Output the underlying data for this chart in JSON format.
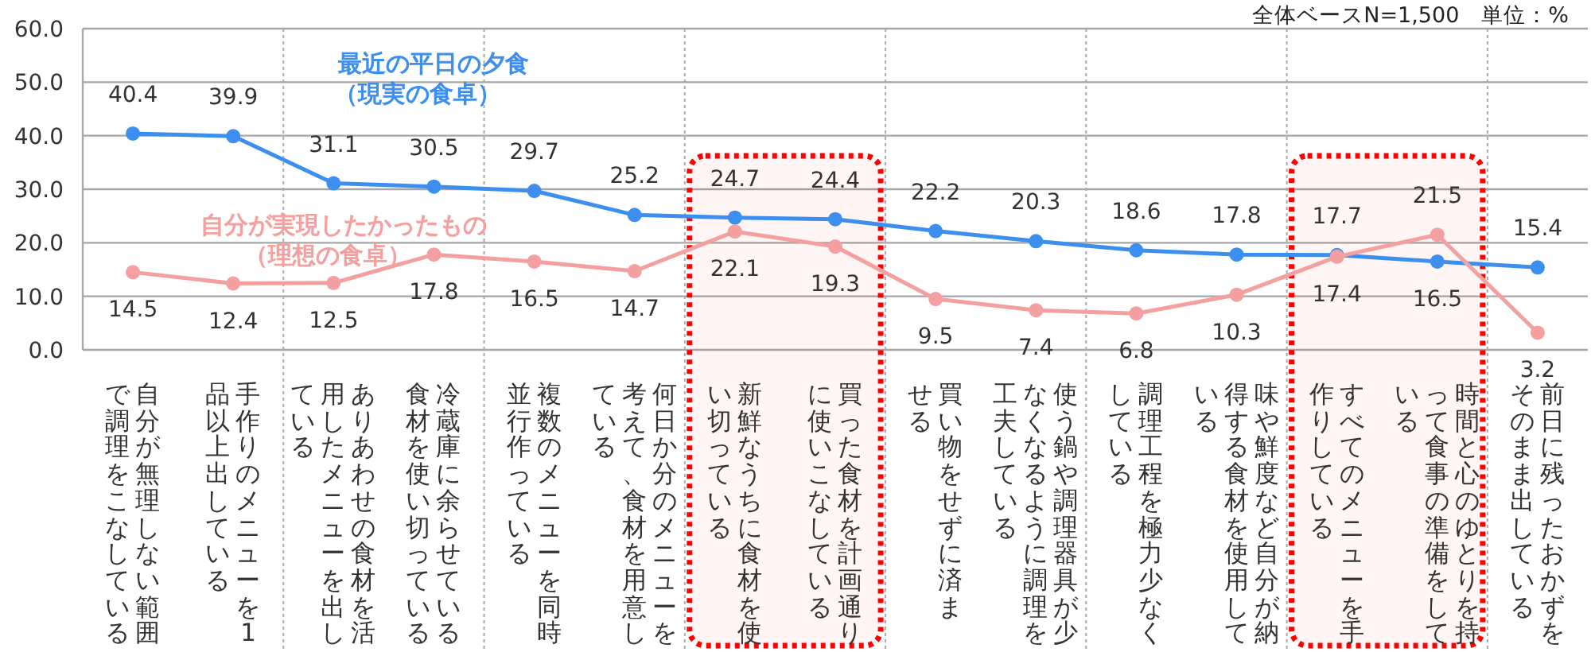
{
  "chart_data": {
    "type": "line",
    "categories": [
      "自分が無理しない範囲で調理をこなしている",
      "手作りのメニューを1品以上出している",
      "ありあわせの食材を活用したメニューを出している",
      "冷蔵庫に余らせている食材を使い切っている",
      "複数のメニューを同時並行作っている",
      "何日か分のメニューを考えて、食材を用意している",
      "新鮮なうちに食材を使い切っている",
      "買った食材を計画通りに使いこなしている",
      "買い物をせずに済ませる",
      "使う鍋や調理器具が少なくなるように調理を工夫している",
      "調理工程を極力少なくしている",
      "味や鮮度など自分が納得する食材を使用している",
      "すべてのメニューを手作りしている",
      "時間と心のゆとりを持って食事の準備をしている",
      "前日に残ったおかずをそのまま出している"
    ],
    "series": [
      {
        "name": "最近の平日の夕食（現実の食卓）",
        "color": "#3d8fef",
        "values": [
          40.4,
          39.9,
          31.1,
          30.5,
          29.7,
          25.2,
          24.7,
          24.4,
          22.2,
          20.3,
          18.6,
          17.8,
          17.7,
          16.5,
          15.4
        ]
      },
      {
        "name": "自分が実現したかったもの（理想の食卓）",
        "color": "#f4a0a0",
        "values": [
          14.5,
          12.4,
          12.5,
          17.8,
          16.5,
          14.7,
          22.1,
          19.3,
          9.5,
          7.4,
          6.8,
          10.3,
          17.4,
          21.5,
          3.2
        ]
      }
    ],
    "ylim": [
      0,
      60
    ],
    "yticks": [
      {
        "value": 0,
        "label": "0.0"
      },
      {
        "value": 10,
        "label": "10.0"
      },
      {
        "value": 20,
        "label": "20.0"
      },
      {
        "value": 30,
        "label": "30.0"
      },
      {
        "value": 40,
        "label": "40.0"
      },
      {
        "value": 50,
        "label": "50.0"
      },
      {
        "value": 60,
        "label": "60.0"
      }
    ],
    "grid": true,
    "marker": "circle",
    "data_labels": true,
    "bands": [
      {
        "axis": "x",
        "from": "新鮮なうちに食材を使い切っている",
        "to": "買った食材を計画通りに使いこなしている",
        "color": "#ff0000"
      },
      {
        "axis": "x",
        "from": "すべてのメニューを手作りしている",
        "to": "時間と心のゆとりを持って食事の準備をしている",
        "color": "#ff0000"
      }
    ],
    "annotations": [
      "全体ベースN=1,500　単位：%"
    ]
  }
}
